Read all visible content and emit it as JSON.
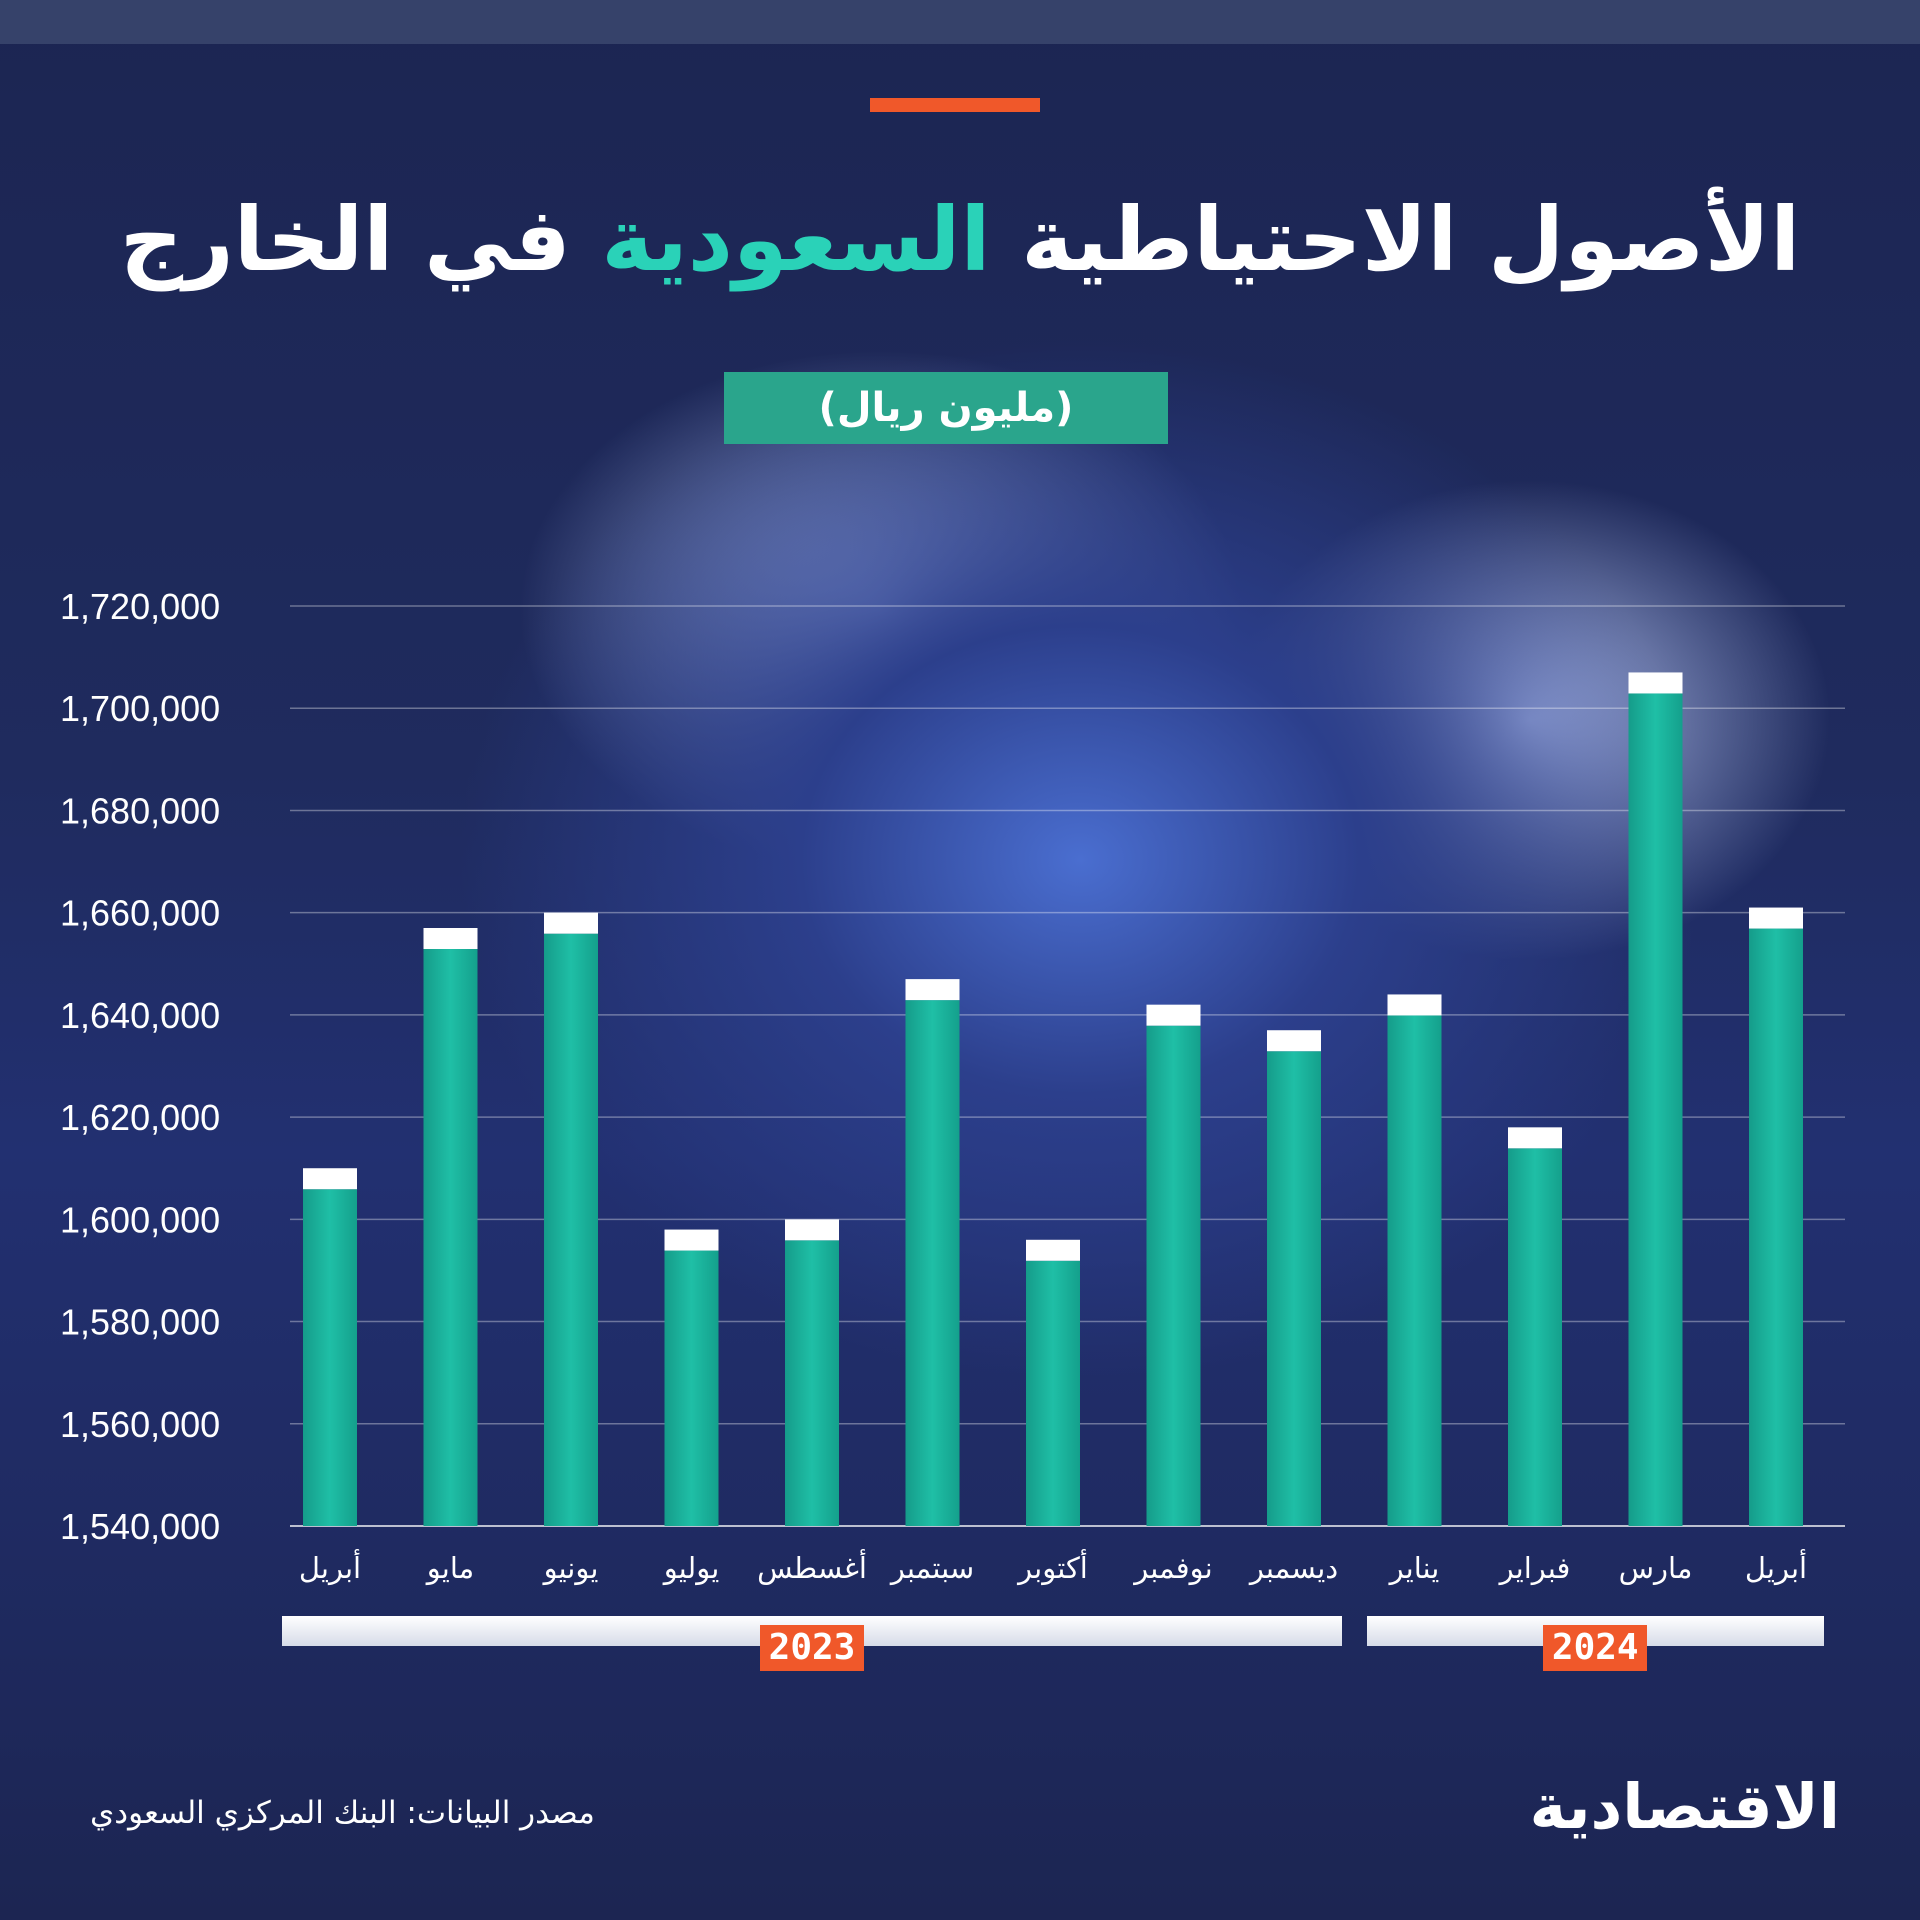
{
  "title": {
    "part1": "الأصول الاحتياطية",
    "highlight": "السعودية",
    "part2": "في الخارج"
  },
  "unit_label": "(مليون ريال)",
  "source": "مصدر البيانات: البنك المركزي السعودي",
  "logo": "الاقتصادية",
  "colors": {
    "bar": "#1fbfa6",
    "bar_cap": "#ffffff",
    "accent": "#f0582a",
    "title_highlight": "#2ad2b8"
  },
  "years": [
    {
      "label": "2023",
      "months": 9
    },
    {
      "label": "2024",
      "months": 4
    }
  ],
  "chart_data": {
    "type": "bar",
    "categories": [
      "أبريل",
      "مايو",
      "يونيو",
      "يوليو",
      "أغسطس",
      "سبتمبر",
      "أكتوبر",
      "نوفمبر",
      "ديسمبر",
      "يناير",
      "فبراير",
      "مارس",
      "أبريل"
    ],
    "values": [
      1610000,
      1657000,
      1660000,
      1598000,
      1600000,
      1647000,
      1596000,
      1642000,
      1637000,
      1644000,
      1618000,
      1707000,
      1661000
    ],
    "y_ticks": [
      "1,540,000",
      "1,560,000",
      "1,580,000",
      "1,600,000",
      "1,620,000",
      "1,640,000",
      "1,660,000",
      "1,680,000",
      "1,700,000",
      "1,720,000"
    ],
    "ylim": [
      1540000,
      1720000
    ],
    "grid": true
  }
}
